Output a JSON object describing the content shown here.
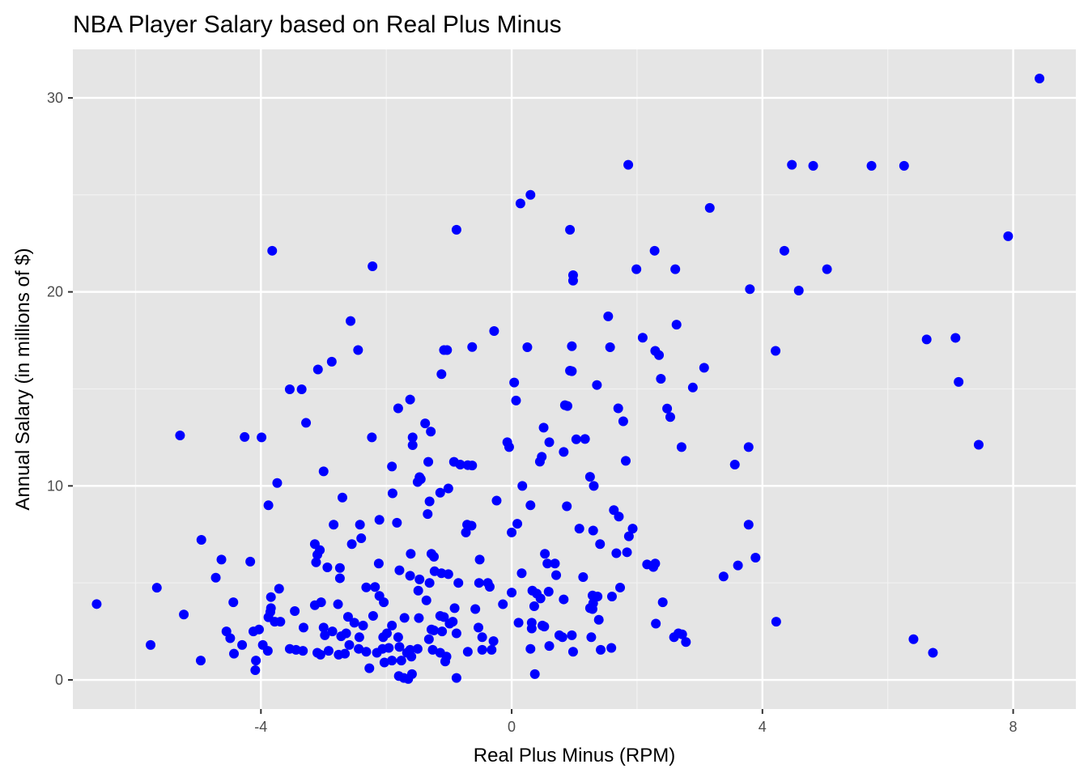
{
  "chart_data": {
    "type": "scatter",
    "title": "NBA Player Salary based on Real Plus Minus",
    "xlabel": "Real Plus Minus (RPM)",
    "ylabel": "Annual Salary (in millions of $)",
    "xlim": [
      -7.0,
      9.0
    ],
    "ylim": [
      -1.5,
      32.5
    ],
    "x_ticks": [
      -4,
      0,
      4,
      8
    ],
    "x_tick_labels": [
      "-4",
      "0",
      "4",
      "8"
    ],
    "y_ticks": [
      0,
      10,
      20,
      30
    ],
    "y_tick_labels": [
      "0",
      "10",
      "20",
      "30"
    ],
    "grid": true,
    "legend": "none",
    "point_color": "#0000ff",
    "panel_background": "#e5e5e5",
    "points": [
      [
        8.42,
        31.0
      ],
      [
        1.86,
        26.55
      ],
      [
        4.47,
        26.55
      ],
      [
        4.81,
        26.5
      ],
      [
        5.74,
        26.5
      ],
      [
        6.26,
        26.5
      ],
      [
        0.3,
        25.0
      ],
      [
        0.14,
        24.56
      ],
      [
        3.16,
        24.33
      ],
      [
        -0.88,
        23.2
      ],
      [
        0.93,
        23.2
      ],
      [
        7.92,
        22.87
      ],
      [
        -3.82,
        22.12
      ],
      [
        2.28,
        22.12
      ],
      [
        4.35,
        22.12
      ],
      [
        -2.22,
        21.32
      ],
      [
        0.98,
        20.86
      ],
      [
        0.98,
        20.58
      ],
      [
        1.99,
        21.17
      ],
      [
        2.61,
        21.17
      ],
      [
        5.03,
        21.17
      ],
      [
        3.8,
        20.14
      ],
      [
        4.58,
        20.07
      ],
      [
        -2.57,
        18.5
      ],
      [
        1.54,
        18.74
      ],
      [
        2.63,
        18.31
      ],
      [
        -0.28,
        17.98
      ],
      [
        2.09,
        17.64
      ],
      [
        6.62,
        17.55
      ],
      [
        7.08,
        17.63
      ],
      [
        -2.45,
        17.0
      ],
      [
        -1.08,
        17.0
      ],
      [
        -1.03,
        17.0
      ],
      [
        -0.63,
        17.16
      ],
      [
        0.25,
        17.15
      ],
      [
        0.96,
        17.2
      ],
      [
        1.57,
        17.15
      ],
      [
        2.29,
        16.96
      ],
      [
        2.35,
        16.74
      ],
      [
        4.21,
        16.96
      ],
      [
        -2.87,
        16.4
      ],
      [
        -3.09,
        16.0
      ],
      [
        0.93,
        15.94
      ],
      [
        0.96,
        15.91
      ],
      [
        3.07,
        16.09
      ],
      [
        -1.12,
        15.76
      ],
      [
        2.38,
        15.52
      ],
      [
        7.13,
        15.36
      ],
      [
        0.04,
        15.33
      ],
      [
        1.36,
        15.2
      ],
      [
        2.89,
        15.07
      ],
      [
        -3.54,
        14.98
      ],
      [
        -3.35,
        14.98
      ],
      [
        -1.62,
        14.45
      ],
      [
        0.07,
        14.4
      ],
      [
        0.85,
        14.16
      ],
      [
        0.89,
        14.12
      ],
      [
        -1.81,
        14.0
      ],
      [
        1.7,
        14.0
      ],
      [
        2.48,
        13.99
      ],
      [
        -3.28,
        13.25
      ],
      [
        -1.38,
        13.22
      ],
      [
        0.51,
        13.0
      ],
      [
        1.78,
        13.33
      ],
      [
        2.53,
        13.55
      ],
      [
        -5.29,
        12.6
      ],
      [
        -4.26,
        12.52
      ],
      [
        -3.99,
        12.5
      ],
      [
        -2.23,
        12.5
      ],
      [
        -1.58,
        12.5
      ],
      [
        -1.29,
        12.8
      ],
      [
        1.03,
        12.4
      ],
      [
        1.17,
        12.42
      ],
      [
        -0.07,
        12.25
      ],
      [
        0.6,
        12.25
      ],
      [
        -1.58,
        12.1
      ],
      [
        -0.04,
        12.0
      ],
      [
        2.71,
        12.0
      ],
      [
        3.78,
        12.0
      ],
      [
        7.45,
        12.12
      ],
      [
        0.83,
        11.75
      ],
      [
        -1.33,
        11.24
      ],
      [
        -0.92,
        11.24
      ],
      [
        -0.82,
        11.1
      ],
      [
        -0.7,
        11.07
      ],
      [
        -0.63,
        11.05
      ],
      [
        -1.91,
        11.0
      ],
      [
        0.48,
        11.5
      ],
      [
        0.45,
        11.25
      ],
      [
        1.82,
        11.29
      ],
      [
        3.56,
        11.1
      ],
      [
        -3.0,
        10.75
      ],
      [
        -1.45,
        10.35
      ],
      [
        -1.5,
        10.2
      ],
      [
        -1.47,
        10.45
      ],
      [
        1.25,
        10.47
      ],
      [
        -3.74,
        10.15
      ],
      [
        0.17,
        10.0
      ],
      [
        1.31,
        10.0
      ],
      [
        -1.01,
        9.87
      ],
      [
        -1.14,
        9.65
      ],
      [
        -1.9,
        9.62
      ],
      [
        -2.7,
        9.4
      ],
      [
        -1.31,
        9.2
      ],
      [
        -0.24,
        9.24
      ],
      [
        -3.88,
        9.0
      ],
      [
        0.3,
        9.0
      ],
      [
        0.88,
        8.95
      ],
      [
        1.63,
        8.75
      ],
      [
        1.71,
        8.42
      ],
      [
        -1.34,
        8.55
      ],
      [
        -2.42,
        8.0
      ],
      [
        -2.11,
        8.25
      ],
      [
        -1.83,
        8.1
      ],
      [
        -2.84,
        8.0
      ],
      [
        -0.71,
        8.0
      ],
      [
        -0.64,
        7.95
      ],
      [
        0.09,
        8.05
      ],
      [
        3.78,
        8.0
      ],
      [
        1.93,
        7.8
      ],
      [
        1.08,
        7.8
      ],
      [
        1.3,
        7.7
      ],
      [
        -0.73,
        7.6
      ],
      [
        0.0,
        7.6
      ],
      [
        -3.14,
        7.0
      ],
      [
        -2.55,
        7.0
      ],
      [
        -2.4,
        7.3
      ],
      [
        1.41,
        7.0
      ],
      [
        1.87,
        7.4
      ],
      [
        -4.95,
        7.22
      ],
      [
        -3.06,
        6.69
      ],
      [
        -3.1,
        6.45
      ],
      [
        -3.12,
        6.06
      ],
      [
        -4.63,
        6.2
      ],
      [
        -4.17,
        6.1
      ],
      [
        -1.61,
        6.5
      ],
      [
        -1.28,
        6.5
      ],
      [
        -1.24,
        6.35
      ],
      [
        0.53,
        6.5
      ],
      [
        0.57,
        6.0
      ],
      [
        0.69,
        6.0
      ],
      [
        1.67,
        6.53
      ],
      [
        1.84,
        6.58
      ],
      [
        3.89,
        6.3
      ],
      [
        -2.12,
        6.0
      ],
      [
        -0.51,
        6.2
      ],
      [
        2.16,
        5.95
      ],
      [
        2.26,
        5.82
      ],
      [
        2.29,
        6.0
      ],
      [
        3.61,
        5.9
      ],
      [
        -2.94,
        5.8
      ],
      [
        -2.74,
        5.77
      ],
      [
        -1.79,
        5.65
      ],
      [
        -1.23,
        5.6
      ],
      [
        -1.12,
        5.5
      ],
      [
        -1.01,
        5.45
      ],
      [
        0.16,
        5.5
      ],
      [
        0.71,
        5.4
      ],
      [
        1.14,
        5.3
      ],
      [
        3.38,
        5.33
      ],
      [
        -4.72,
        5.27
      ],
      [
        -2.74,
        5.24
      ],
      [
        -1.62,
        5.37
      ],
      [
        -1.47,
        5.18
      ],
      [
        -1.31,
        5.0
      ],
      [
        -0.85,
        5.0
      ],
      [
        -0.52,
        5.0
      ],
      [
        -0.38,
        5.0
      ],
      [
        -0.35,
        4.8
      ],
      [
        -5.66,
        4.75
      ],
      [
        -3.71,
        4.7
      ],
      [
        -2.32,
        4.77
      ],
      [
        -2.18,
        4.79
      ],
      [
        -1.49,
        4.6
      ],
      [
        0.0,
        4.5
      ],
      [
        0.33,
        4.6
      ],
      [
        0.59,
        4.55
      ],
      [
        0.4,
        4.45
      ],
      [
        1.29,
        4.35
      ],
      [
        1.37,
        4.3
      ],
      [
        1.73,
        4.76
      ],
      [
        1.6,
        4.3
      ],
      [
        -3.84,
        4.27
      ],
      [
        -2.11,
        4.33
      ],
      [
        0.46,
        4.2
      ],
      [
        0.83,
        4.15
      ],
      [
        -4.44,
        4.0
      ],
      [
        -3.04,
        4.0
      ],
      [
        -3.14,
        3.85
      ],
      [
        -2.77,
        3.9
      ],
      [
        -2.04,
        4.0
      ],
      [
        -1.36,
        4.1
      ],
      [
        -0.14,
        3.9
      ],
      [
        -6.62,
        3.91
      ],
      [
        -3.84,
        3.7
      ],
      [
        -3.85,
        3.5
      ],
      [
        -3.46,
        3.55
      ],
      [
        -0.91,
        3.7
      ],
      [
        -0.58,
        3.65
      ],
      [
        0.36,
        3.8
      ],
      [
        1.25,
        3.7
      ],
      [
        1.3,
        3.95
      ],
      [
        1.29,
        3.65
      ],
      [
        2.41,
        4.0
      ],
      [
        -5.23,
        3.37
      ],
      [
        -3.78,
        3.0
      ],
      [
        -3.69,
        3.0
      ],
      [
        -3.88,
        3.23
      ],
      [
        -2.61,
        3.25
      ],
      [
        -2.51,
        2.95
      ],
      [
        -2.21,
        3.3
      ],
      [
        -1.71,
        3.2
      ],
      [
        -1.48,
        3.19
      ],
      [
        -1.14,
        3.3
      ],
      [
        -1.08,
        3.24
      ],
      [
        -0.94,
        3.0
      ],
      [
        -0.99,
        2.9
      ],
      [
        0.11,
        2.95
      ],
      [
        0.32,
        2.95
      ],
      [
        0.49,
        2.8
      ],
      [
        1.39,
        3.1
      ],
      [
        2.3,
        2.9
      ],
      [
        4.22,
        3.0
      ],
      [
        -4.03,
        2.6
      ],
      [
        -3.32,
        2.7
      ],
      [
        -3.0,
        2.7
      ],
      [
        -2.86,
        2.5
      ],
      [
        -2.64,
        2.4
      ],
      [
        -2.37,
        2.8
      ],
      [
        -1.91,
        2.8
      ],
      [
        -1.28,
        2.6
      ],
      [
        -1.24,
        2.55
      ],
      [
        -0.88,
        2.4
      ],
      [
        -1.11,
        2.5
      ],
      [
        -0.53,
        2.7
      ],
      [
        0.32,
        2.65
      ],
      [
        0.52,
        2.75
      ],
      [
        2.66,
        2.4
      ],
      [
        2.72,
        2.35
      ],
      [
        -4.55,
        2.5
      ],
      [
        -4.12,
        2.5
      ],
      [
        -2.98,
        2.3
      ],
      [
        -2.72,
        2.25
      ],
      [
        -2.43,
        2.2
      ],
      [
        -2.05,
        2.2
      ],
      [
        -1.99,
        2.4
      ],
      [
        -1.81,
        2.2
      ],
      [
        -1.32,
        2.1
      ],
      [
        -0.47,
        2.2
      ],
      [
        -0.29,
        2.0
      ],
      [
        0.76,
        2.3
      ],
      [
        0.81,
        2.2
      ],
      [
        0.96,
        2.3
      ],
      [
        1.27,
        2.2
      ],
      [
        2.59,
        2.2
      ],
      [
        6.41,
        2.1
      ],
      [
        -4.49,
        2.15
      ],
      [
        -4.3,
        1.8
      ],
      [
        -3.97,
        1.8
      ],
      [
        -3.89,
        1.5
      ],
      [
        -3.54,
        1.6
      ],
      [
        -3.44,
        1.55
      ],
      [
        -3.33,
        1.5
      ],
      [
        -3.1,
        1.4
      ],
      [
        -2.92,
        1.5
      ],
      [
        -2.76,
        1.3
      ],
      [
        -2.59,
        1.8
      ],
      [
        -2.44,
        1.6
      ],
      [
        -2.32,
        1.45
      ],
      [
        -2.15,
        1.4
      ],
      [
        -2.06,
        1.6
      ],
      [
        -1.96,
        1.65
      ],
      [
        -1.79,
        1.7
      ],
      [
        -1.67,
        1.4
      ],
      [
        -1.62,
        1.55
      ],
      [
        -1.5,
        1.6
      ],
      [
        -1.26,
        1.55
      ],
      [
        -1.14,
        1.4
      ],
      [
        -1.04,
        1.2
      ],
      [
        -0.7,
        1.45
      ],
      [
        -0.47,
        1.55
      ],
      [
        -0.32,
        1.55
      ],
      [
        0.3,
        1.6
      ],
      [
        0.6,
        1.75
      ],
      [
        0.98,
        1.45
      ],
      [
        1.42,
        1.55
      ],
      [
        1.59,
        1.65
      ],
      [
        -5.76,
        1.8
      ],
      [
        -4.43,
        1.35
      ],
      [
        -4.08,
        1.0
      ],
      [
        -4.09,
        0.5
      ],
      [
        -4.96,
        1.0
      ],
      [
        -3.05,
        1.3
      ],
      [
        -2.66,
        1.35
      ],
      [
        -2.27,
        0.6
      ],
      [
        -2.03,
        0.9
      ],
      [
        -1.91,
        1.0
      ],
      [
        -1.76,
        1.0
      ],
      [
        -1.6,
        1.2
      ],
      [
        -1.06,
        0.95
      ],
      [
        -1.72,
        0.1
      ],
      [
        -1.8,
        0.2
      ],
      [
        -1.65,
        0.05
      ],
      [
        -1.59,
        0.3
      ],
      [
        -0.88,
        0.1
      ],
      [
        0.37,
        0.3
      ],
      [
        2.78,
        1.95
      ],
      [
        6.72,
        1.4
      ]
    ]
  }
}
